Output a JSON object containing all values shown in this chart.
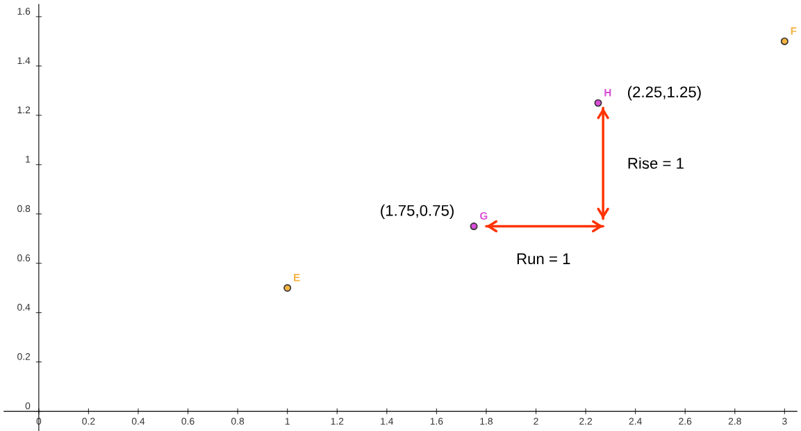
{
  "chart_data": {
    "type": "scatter",
    "xlim": [
      -0.14,
      3.05
    ],
    "ylim": [
      -0.08,
      1.65
    ],
    "xticks": [
      0,
      0.2,
      0.4,
      0.6,
      0.8,
      1,
      1.2,
      1.4,
      1.6,
      1.8,
      2,
      2.2,
      2.4,
      2.6,
      2.8,
      3
    ],
    "yticks": [
      0,
      0.2,
      0.4,
      0.6,
      0.8,
      1,
      1.2,
      1.4,
      1.6
    ],
    "grid": false,
    "marker": "circle",
    "series": [
      {
        "color": "#f5b342",
        "x": [
          1,
          3
        ],
        "values": [
          0.5,
          1.5
        ],
        "value_labels": [
          "E",
          "F"
        ]
      },
      {
        "color": "#d94fd9",
        "x": [
          1.75,
          2.25
        ],
        "values": [
          0.75,
          1.25
        ],
        "value_labels": [
          "G",
          "H"
        ]
      },
      {
        "type": "line",
        "marker": "none",
        "color": "#ff3300",
        "x": [
          1.8,
          2.27
        ],
        "values": [
          0.75,
          0.75
        ]
      },
      {
        "type": "line",
        "marker": "none",
        "color": "#ff3300",
        "x": [
          2.27,
          2.27
        ],
        "values": [
          0.78,
          1.23
        ]
      }
    ],
    "annotations": [
      {
        "text": "(2.25,1.25)",
        "x": 2.25,
        "y": 1.25
      },
      {
        "text": "(1.75,0.75)",
        "x": 1.75,
        "y": 0.75
      },
      {
        "text": "Rise = 1",
        "x": 2.27,
        "y": 1.0
      },
      {
        "text": "Run = 1",
        "x": 2.03,
        "y": 0.75
      }
    ]
  }
}
